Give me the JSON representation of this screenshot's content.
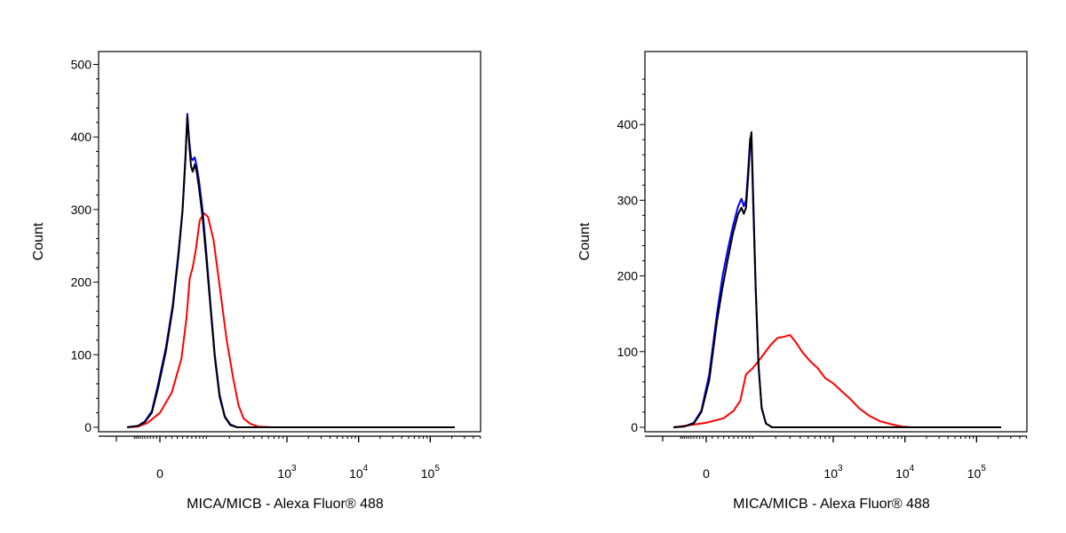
{
  "chart_data": [
    {
      "type": "line",
      "title": "",
      "xlabel": "MICA/MICB - Alexa Fluor® 488",
      "ylabel": "Count",
      "x_scale": "biexponential",
      "x_ticks": [
        {
          "value": 0,
          "base": "0",
          "exp": ""
        },
        {
          "value": 1000,
          "base": "10",
          "exp": "3"
        },
        {
          "value": 10000,
          "base": "10",
          "exp": "4"
        },
        {
          "value": 100000,
          "base": "10",
          "exp": "5"
        }
      ],
      "y_ticks": [
        0,
        100,
        200,
        300,
        400,
        500
      ],
      "ylim": [
        0,
        500
      ],
      "grid": false,
      "legend": "none",
      "series": [
        {
          "color": "#ff0000",
          "values": [
            [
              -150,
              0
            ],
            [
              -80,
              1
            ],
            [
              -40,
              6
            ],
            [
              0,
              20
            ],
            [
              20,
              48
            ],
            [
              38,
              95
            ],
            [
              48,
              150
            ],
            [
              55,
              205
            ],
            [
              62,
              220
            ],
            [
              70,
              245
            ],
            [
              80,
              285
            ],
            [
              92,
              295
            ],
            [
              105,
              290
            ],
            [
              125,
              258
            ],
            [
              150,
              195
            ],
            [
              185,
              120
            ],
            [
              225,
              65
            ],
            [
              260,
              30
            ],
            [
              300,
              12
            ],
            [
              360,
              5
            ],
            [
              450,
              1
            ],
            [
              700,
              0
            ],
            [
              220000,
              0
            ]
          ]
        },
        {
          "color": "#0000ff",
          "values": [
            [
              -150,
              0
            ],
            [
              -80,
              2
            ],
            [
              -50,
              8
            ],
            [
              -25,
              22
            ],
            [
              -5,
              60
            ],
            [
              10,
              110
            ],
            [
              22,
              170
            ],
            [
              32,
              240
            ],
            [
              40,
              300
            ],
            [
              46,
              375
            ],
            [
              50,
              432
            ],
            [
              54,
              395
            ],
            [
              58,
              372
            ],
            [
              62,
              368
            ],
            [
              67,
              372
            ],
            [
              72,
              360
            ],
            [
              78,
              340
            ],
            [
              88,
              300
            ],
            [
              100,
              240
            ],
            [
              115,
              165
            ],
            [
              130,
              100
            ],
            [
              150,
              45
            ],
            [
              175,
              15
            ],
            [
              205,
              4
            ],
            [
              250,
              0
            ],
            [
              220000,
              0
            ]
          ]
        },
        {
          "color": "#000000",
          "values": [
            [
              -150,
              0
            ],
            [
              -80,
              2
            ],
            [
              -50,
              7
            ],
            [
              -25,
              20
            ],
            [
              -5,
              55
            ],
            [
              10,
              105
            ],
            [
              22,
              165
            ],
            [
              32,
              235
            ],
            [
              40,
              298
            ],
            [
              46,
              370
            ],
            [
              50,
              428
            ],
            [
              54,
              390
            ],
            [
              58,
              360
            ],
            [
              62,
              352
            ],
            [
              67,
              362
            ],
            [
              72,
              352
            ],
            [
              78,
              330
            ],
            [
              88,
              290
            ],
            [
              100,
              232
            ],
            [
              115,
              160
            ],
            [
              130,
              96
            ],
            [
              150,
              42
            ],
            [
              175,
              14
            ],
            [
              205,
              3
            ],
            [
              250,
              0
            ],
            [
              220000,
              0
            ]
          ]
        }
      ]
    },
    {
      "type": "line",
      "title": "",
      "xlabel": "MICA/MICB - Alexa Fluor® 488",
      "ylabel": "Count",
      "x_scale": "biexponential",
      "x_ticks": [
        {
          "value": 0,
          "base": "0",
          "exp": ""
        },
        {
          "value": 1000,
          "base": "10",
          "exp": "3"
        },
        {
          "value": 10000,
          "base": "10",
          "exp": "4"
        },
        {
          "value": 100000,
          "base": "10",
          "exp": "5"
        }
      ],
      "y_ticks": [
        0,
        100,
        200,
        300,
        400
      ],
      "ylim": [
        0,
        470
      ],
      "grid": false,
      "legend": "none",
      "series": [
        {
          "color": "#ff0000",
          "values": [
            [
              -150,
              0
            ],
            [
              -50,
              3
            ],
            [
              0,
              6
            ],
            [
              30,
              12
            ],
            [
              50,
              22
            ],
            [
              65,
              35
            ],
            [
              80,
              70
            ],
            [
              100,
              78
            ],
            [
              130,
              92
            ],
            [
              170,
              108
            ],
            [
              210,
              118
            ],
            [
              260,
              120
            ],
            [
              300,
              122
            ],
            [
              350,
              113
            ],
            [
              420,
              100
            ],
            [
              520,
              88
            ],
            [
              650,
              78
            ],
            [
              800,
              65
            ],
            [
              1000,
              58
            ],
            [
              1300,
              48
            ],
            [
              1700,
              38
            ],
            [
              2300,
              25
            ],
            [
              3200,
              15
            ],
            [
              4500,
              8
            ],
            [
              6500,
              4
            ],
            [
              9000,
              1
            ],
            [
              12000,
              0
            ],
            [
              220000,
              0
            ]
          ]
        },
        {
          "color": "#0000ff",
          "values": [
            [
              -150,
              0
            ],
            [
              -80,
              1
            ],
            [
              -40,
              6
            ],
            [
              -15,
              22
            ],
            [
              5,
              70
            ],
            [
              18,
              150
            ],
            [
              28,
              200
            ],
            [
              38,
              235
            ],
            [
              48,
              265
            ],
            [
              60,
              292
            ],
            [
              68,
              302
            ],
            [
              74,
              292
            ],
            [
              80,
              300
            ],
            [
              86,
              340
            ],
            [
              92,
              382
            ],
            [
              96,
              375
            ],
            [
              102,
              290
            ],
            [
              110,
              180
            ],
            [
              120,
              80
            ],
            [
              132,
              25
            ],
            [
              150,
              5
            ],
            [
              180,
              0
            ],
            [
              220000,
              0
            ]
          ]
        },
        {
          "color": "#000000",
          "values": [
            [
              -150,
              0
            ],
            [
              -80,
              1
            ],
            [
              -40,
              5
            ],
            [
              -15,
              20
            ],
            [
              5,
              62
            ],
            [
              18,
              140
            ],
            [
              28,
              185
            ],
            [
              38,
              222
            ],
            [
              48,
              255
            ],
            [
              60,
              282
            ],
            [
              68,
              290
            ],
            [
              74,
              282
            ],
            [
              80,
              290
            ],
            [
              86,
              330
            ],
            [
              92,
              378
            ],
            [
              96,
              390
            ],
            [
              102,
              300
            ],
            [
              110,
              185
            ],
            [
              120,
              82
            ],
            [
              132,
              26
            ],
            [
              150,
              5
            ],
            [
              180,
              0
            ],
            [
              220000,
              0
            ]
          ]
        }
      ]
    }
  ]
}
